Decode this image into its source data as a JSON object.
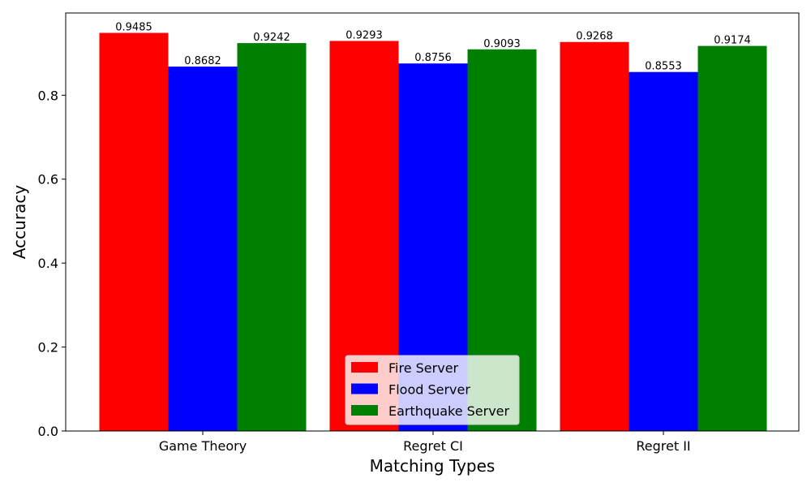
{
  "chart_data": {
    "type": "bar",
    "title": "",
    "xlabel": "Matching Types",
    "ylabel": "Accuracy",
    "categories": [
      "Game Theory",
      "Regret CI",
      "Regret II"
    ],
    "series": [
      {
        "name": "Fire Server",
        "color": "#ff0000",
        "values": [
          0.9485,
          0.9293,
          0.9268
        ],
        "labels": [
          "0.9485",
          "0.9293",
          "0.9268"
        ]
      },
      {
        "name": "Flood Server",
        "color": "#0000ff",
        "values": [
          0.8682,
          0.8756,
          0.8553
        ],
        "labels": [
          "0.8682",
          "0.8756",
          "0.8553"
        ]
      },
      {
        "name": "Earthquake Server",
        "color": "#008000",
        "values": [
          0.9242,
          0.9093,
          0.9174
        ],
        "labels": [
          "0.9242",
          "0.9093",
          "0.9174"
        ]
      }
    ],
    "ylim": [
      0,
      0.9959
    ],
    "yticks": [
      0.0,
      0.2,
      0.4,
      0.6,
      0.8
    ],
    "ytick_labels": [
      "0.0",
      "0.2",
      "0.4",
      "0.6",
      "0.8"
    ],
    "grid": false,
    "legend_position": "lower-center"
  }
}
